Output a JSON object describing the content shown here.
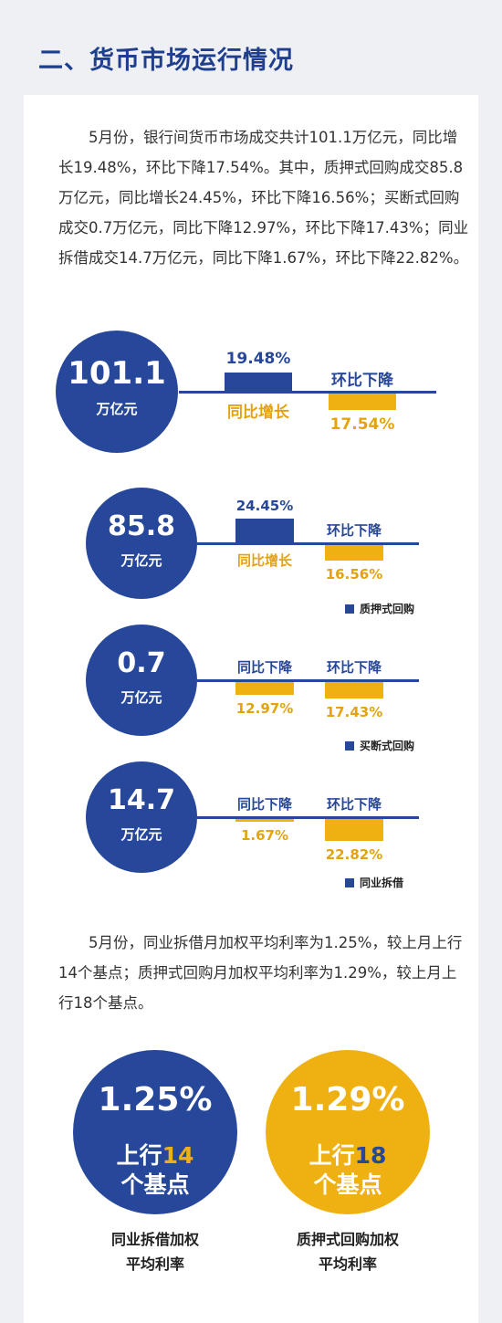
{
  "section_title": "二、货币市场运行情况",
  "paragraph1": "5月份，银行间货币市场成交共计101.1万亿元，同比增长19.48%，环比下降17.54%。其中，质押式回购成交85.8万亿元，同比增长24.45%，环比下降16.56%；买断式回购成交0.7万亿元，同比下降12.97%，环比下降17.43%；同业拆借成交14.7万亿元，同比下降1.67%，环比下降22.82%。",
  "metrics": [
    {
      "value": "101.1",
      "unit": "万亿元",
      "yoy_label": "同比增长",
      "yoy_value": "19.48%",
      "yoy": 19.48,
      "mom_label": "环比下降",
      "mom_value": "17.54%",
      "mom": -17.54
    },
    {
      "value": "85.8",
      "unit": "万亿元",
      "yoy_label": "同比增长",
      "yoy_value": "24.45%",
      "yoy": 24.45,
      "mom_label": "环比下降",
      "mom_value": "16.56%",
      "mom": -16.56,
      "legend": "质押式回购"
    },
    {
      "value": "0.7",
      "unit": "万亿元",
      "yoy_label": "同比下降",
      "yoy_value": "12.97%",
      "yoy": -12.97,
      "mom_label": "环比下降",
      "mom_value": "17.43%",
      "mom": -17.43,
      "legend": "买断式回购"
    },
    {
      "value": "14.7",
      "unit": "万亿元",
      "yoy_label": "同比下降",
      "yoy_value": "1.67%",
      "yoy": -1.67,
      "mom_label": "环比下降",
      "mom_value": "22.82%",
      "mom": -22.82,
      "legend": "同业拆借"
    }
  ],
  "paragraph2": "5月份，同业拆借月加权平均利率为1.25%，较上月上行14个基点；质押式回购月加权平均利率为1.29%，较上月上行18个基点。",
  "rates": [
    {
      "rate": "1.25%",
      "prefix": "上行",
      "bp": "14",
      "suffix": "个基点",
      "caption_line1": "同业拆借加权",
      "caption_line2": "平均利率"
    },
    {
      "rate": "1.29%",
      "prefix": "上行",
      "bp": "18",
      "suffix": "个基点",
      "caption_line1": "质押式回购加权",
      "caption_line2": "平均利率"
    }
  ],
  "colors": {
    "blue": "#27479a",
    "yellow": "#efb111",
    "title": "#1f3f8e",
    "background": "#eef0f4"
  }
}
